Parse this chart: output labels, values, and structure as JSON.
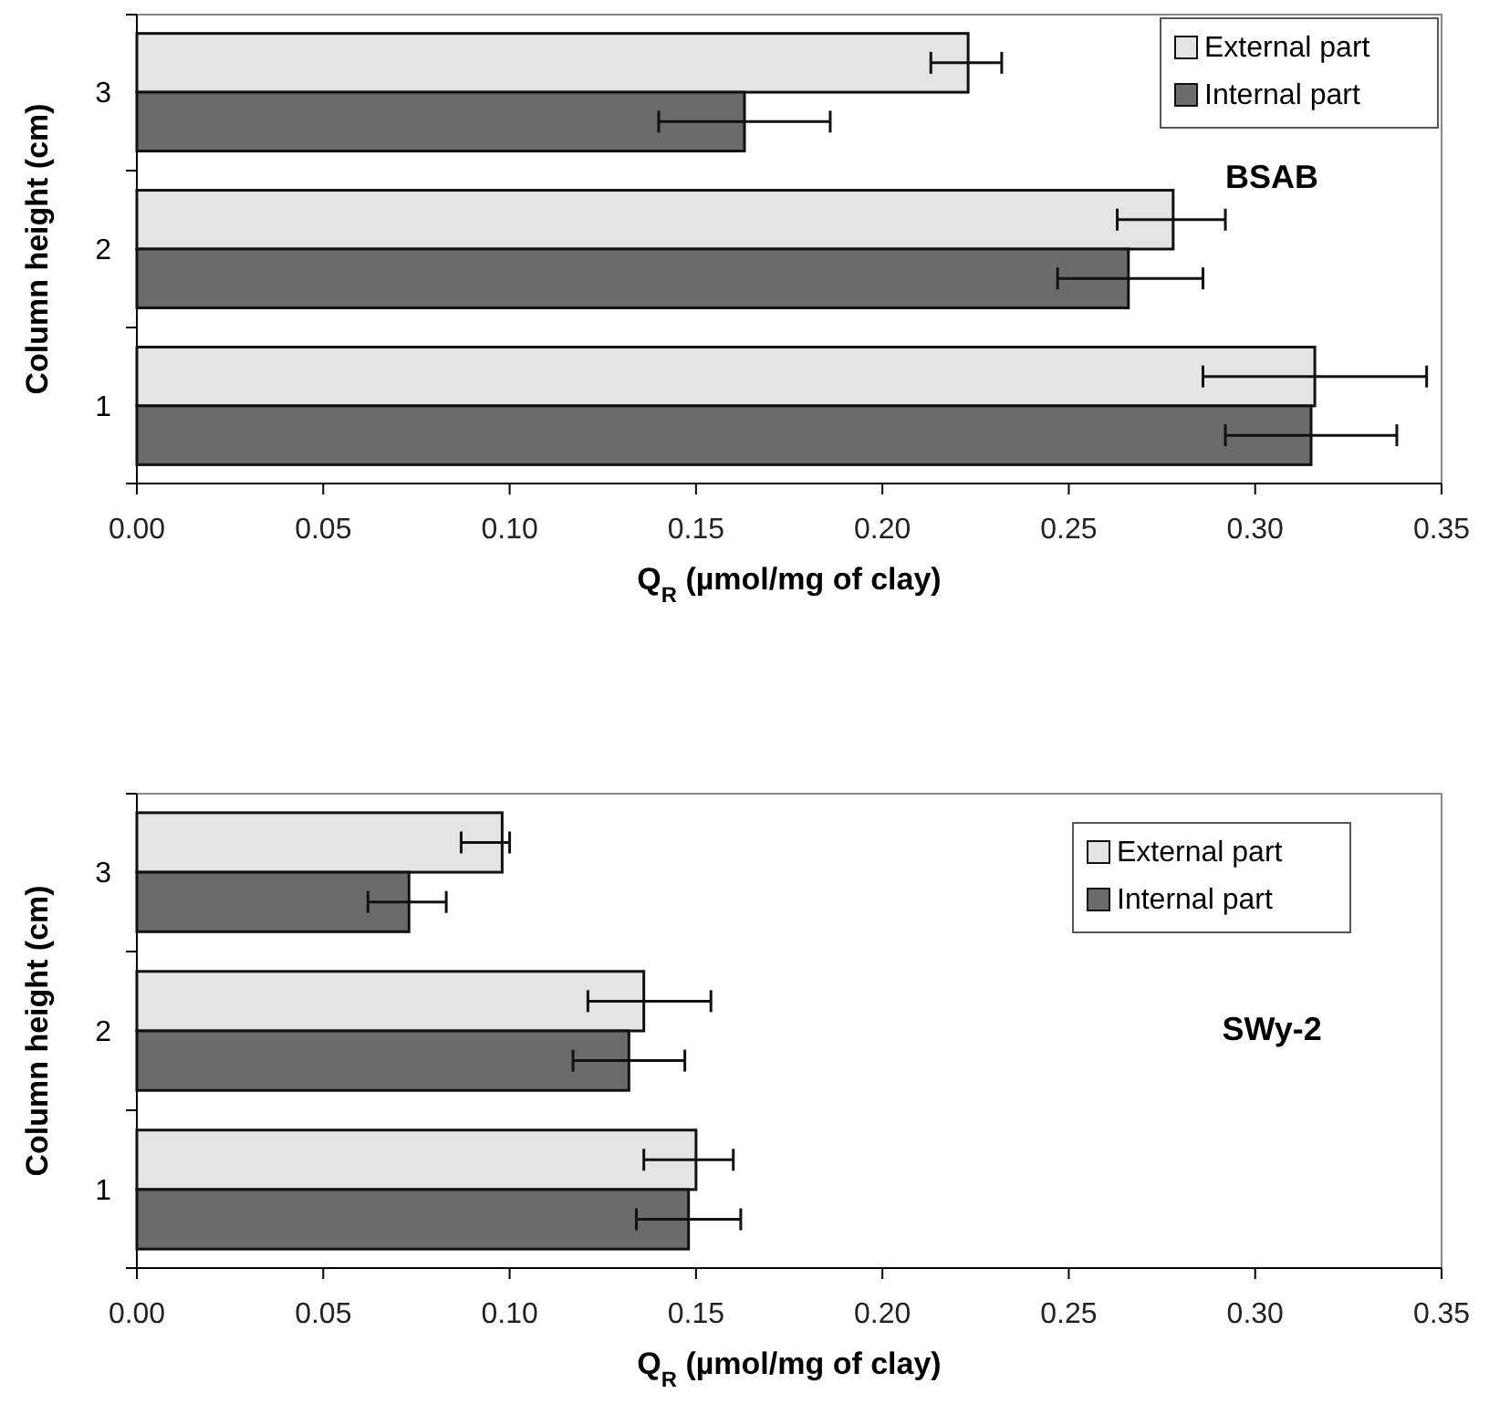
{
  "chart_data": [
    {
      "type": "bar",
      "orientation": "horizontal",
      "categories": [
        "3",
        "2",
        "1"
      ],
      "xlabel": "Q$_{R}$ (µmol/mg of clay)",
      "ylabel": "Column height (cm)",
      "xlim": [
        0,
        0.35
      ],
      "xticks": [
        {
          "value": 0,
          "label": "0.00"
        },
        0.05,
        {
          "value": 0.1,
          "label": "0.10"
        },
        0.15,
        {
          "value": 0.2,
          "label": "0.20"
        },
        0.25,
        {
          "value": 0.3,
          "label": "0.30"
        },
        0.35
      ],
      "legend": "top right",
      "grid": false,
      "annotations": [
        "BSAB"
      ],
      "series": [
        {
          "name": "External part",
          "color": "#e4e4e4",
          "values": [
            0.223,
            0.278,
            0.316
          ],
          "errors": [
            [
              0.213,
              0.232
            ],
            [
              0.263,
              0.292
            ],
            [
              0.286,
              0.346
            ]
          ]
        },
        {
          "name": "Internal part",
          "color": "#6b6b6b",
          "values": [
            0.163,
            0.266,
            0.315
          ],
          "errors": [
            [
              0.14,
              0.186
            ],
            [
              0.247,
              0.286
            ],
            [
              0.292,
              0.338
            ]
          ]
        }
      ]
    },
    {
      "type": "bar",
      "orientation": "horizontal",
      "categories": [
        "3",
        "2",
        "1"
      ],
      "xlabel": "Q$_{R}$ (µmol/mg of clay)",
      "ylabel": "Column height (cm)",
      "xlim": [
        0,
        0.35
      ],
      "xticks": [
        {
          "value": 0,
          "label": "0.00"
        },
        0.05,
        {
          "value": 0.1,
          "label": "0.10"
        },
        0.15,
        {
          "value": 0.2,
          "label": "0.20"
        },
        0.25,
        {
          "value": 0.3,
          "label": "0.30"
        },
        0.35
      ],
      "legend": "top right",
      "grid": false,
      "annotations": [
        "SWy-2"
      ],
      "series": [
        {
          "name": "External part",
          "color": "#e4e4e4",
          "values": [
            0.098,
            0.136,
            0.15
          ],
          "errors": [
            [
              0.087,
              0.1
            ],
            [
              0.121,
              0.154
            ],
            [
              0.136,
              0.16
            ]
          ]
        },
        {
          "name": "Internal part",
          "color": "#6b6b6b",
          "values": [
            0.073,
            0.132,
            0.148
          ],
          "errors": [
            [
              0.062,
              0.083
            ],
            [
              0.117,
              0.147
            ],
            [
              0.134,
              0.162
            ]
          ]
        }
      ]
    }
  ]
}
